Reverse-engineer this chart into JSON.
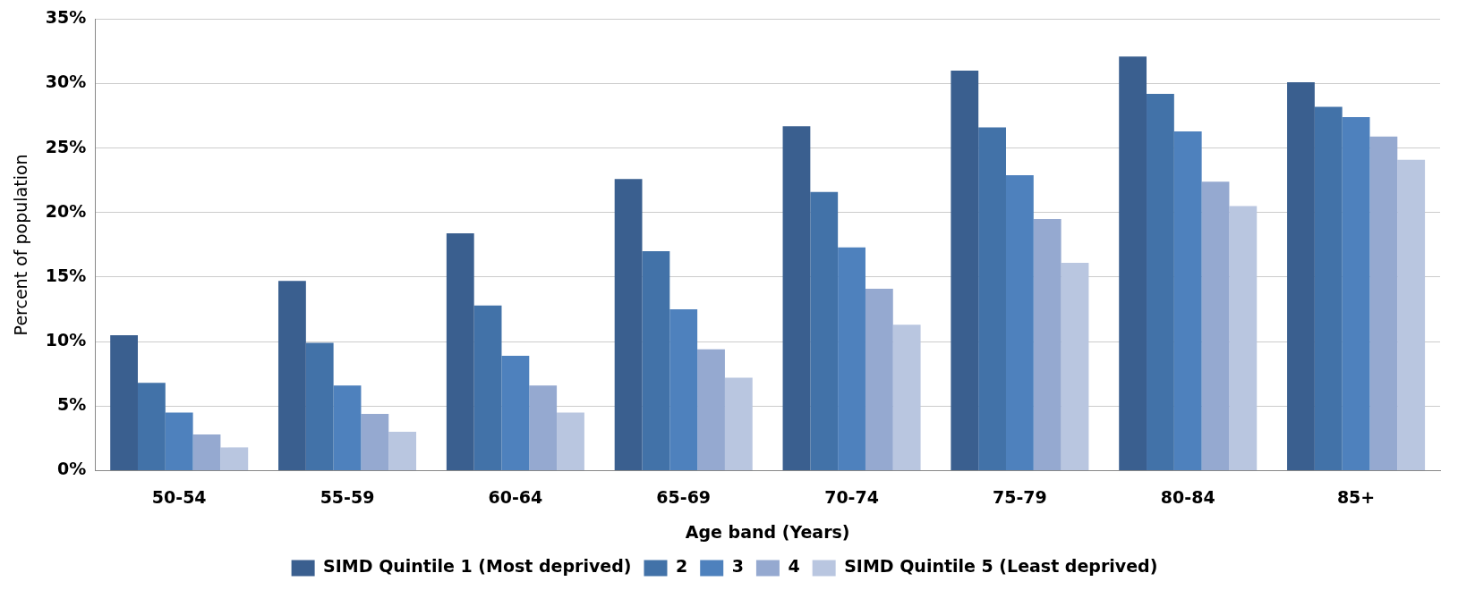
{
  "chart_data": {
    "type": "bar",
    "xlabel": "Age band (Years)",
    "ylabel": "Percent of population",
    "categories": [
      "50-54",
      "55-59",
      "60-64",
      "65-69",
      "70-74",
      "75-79",
      "80-84",
      "85+"
    ],
    "series": [
      {
        "name": "SIMD Quintile 1 (Most deprived)",
        "color": "#3a5f8f",
        "values": [
          10.5,
          14.7,
          18.4,
          22.6,
          26.7,
          31.0,
          32.1,
          30.1
        ]
      },
      {
        "name": "2",
        "color": "#4272a8",
        "values": [
          6.8,
          9.9,
          12.8,
          17.0,
          21.6,
          26.6,
          29.2,
          28.2
        ]
      },
      {
        "name": "3",
        "color": "#4e81bd",
        "values": [
          4.5,
          6.6,
          8.9,
          12.5,
          17.3,
          22.9,
          26.3,
          27.4
        ]
      },
      {
        "name": "4",
        "color": "#95a9d0",
        "values": [
          2.8,
          4.4,
          6.6,
          9.4,
          14.1,
          19.5,
          22.4,
          25.9
        ]
      },
      {
        "name": "SIMD Quintile 5 (Least deprived)",
        "color": "#b9c6e0",
        "values": [
          1.8,
          3.0,
          4.5,
          7.2,
          11.3,
          16.1,
          20.5,
          24.1
        ]
      }
    ],
    "ylim": [
      0,
      35
    ],
    "yticks": [
      {
        "value": 0,
        "label": "0%"
      },
      {
        "value": 5,
        "label": "5%"
      },
      {
        "value": 10,
        "label": "10%"
      },
      {
        "value": 15,
        "label": "15%"
      },
      {
        "value": 20,
        "label": "20%"
      },
      {
        "value": 25,
        "label": "25%"
      },
      {
        "value": 30,
        "label": "30%"
      },
      {
        "value": 35,
        "label": "35%"
      }
    ],
    "grid": "y",
    "legend": "bottom"
  }
}
